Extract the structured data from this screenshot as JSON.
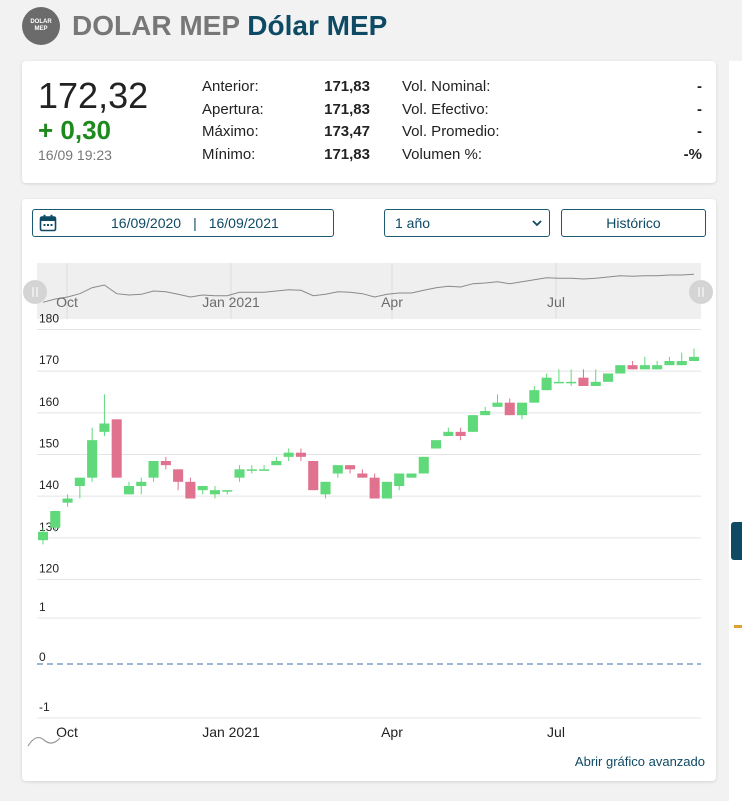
{
  "header": {
    "logo_text": "DOLAR MEP",
    "symbol": "DOLAR MEP",
    "name": "Dólar MEP"
  },
  "quote": {
    "price": "172,32",
    "change": "+ 0,30",
    "datetime": "16/09 19:23",
    "stats_left": [
      {
        "label": "Anterior:",
        "value": "171,83"
      },
      {
        "label": "Apertura:",
        "value": "171,83"
      },
      {
        "label": "Máximo:",
        "value": "173,47"
      },
      {
        "label": "Mínimo:",
        "value": "171,83"
      }
    ],
    "stats_right": [
      {
        "label": "Vol. Nominal:",
        "value": "-"
      },
      {
        "label": "Vol. Efectivo:",
        "value": "-"
      },
      {
        "label": "Vol. Promedio:",
        "value": "-"
      },
      {
        "label": "Volumen %:",
        "value": "-%"
      }
    ]
  },
  "controls": {
    "date_from": "16/09/2020",
    "separator": "|",
    "date_to": "16/09/2021",
    "period": "1 año",
    "historic_button": "Histórico",
    "advanced_link": "Abrir gráfico avanzado"
  },
  "colors": {
    "up": "#5fd97a",
    "down": "#e0728f",
    "brand": "#0e4a64",
    "change_positive": "#1c8a1c",
    "zero_line": "#7e9ec4"
  },
  "chart_data": {
    "type": "candlestick",
    "x_labels": [
      "Oct",
      "Jan 2021",
      "Apr",
      "Jul"
    ],
    "price_axis": {
      "ticks": [
        120,
        130,
        140,
        150,
        160,
        170,
        180
      ],
      "ylim": [
        117,
        183
      ]
    },
    "volume_axis": {
      "ticks": [
        1,
        0,
        -1
      ]
    },
    "grid": true,
    "candles": [
      {
        "o": 128,
        "h": 131,
        "l": 127,
        "c": 130
      },
      {
        "o": 131,
        "h": 135,
        "l": 130,
        "c": 135
      },
      {
        "o": 137,
        "h": 139,
        "l": 136,
        "c": 138
      },
      {
        "o": 141,
        "h": 143,
        "l": 138,
        "c": 143
      },
      {
        "o": 143,
        "h": 155,
        "l": 142,
        "c": 152
      },
      {
        "o": 154,
        "h": 163,
        "l": 153,
        "c": 156
      },
      {
        "o": 157,
        "h": 157,
        "l": 143,
        "c": 143
      },
      {
        "o": 139,
        "h": 142,
        "l": 139,
        "c": 141
      },
      {
        "o": 141,
        "h": 143,
        "l": 139,
        "c": 142
      },
      {
        "o": 143,
        "h": 147,
        "l": 142,
        "c": 147
      },
      {
        "o": 147,
        "h": 148,
        "l": 145,
        "c": 146
      },
      {
        "o": 145,
        "h": 145,
        "l": 140,
        "c": 142
      },
      {
        "o": 142,
        "h": 143,
        "l": 138,
        "c": 138
      },
      {
        "o": 140,
        "h": 141,
        "l": 139,
        "c": 141
      },
      {
        "o": 139,
        "h": 141,
        "l": 138,
        "c": 140
      },
      {
        "o": 140,
        "h": 140,
        "l": 139,
        "c": 140
      },
      {
        "o": 143,
        "h": 146,
        "l": 142,
        "c": 145
      },
      {
        "o": 145,
        "h": 146,
        "l": 144,
        "c": 145
      },
      {
        "o": 145,
        "h": 146,
        "l": 145,
        "c": 145
      },
      {
        "o": 146,
        "h": 148,
        "l": 146,
        "c": 147
      },
      {
        "o": 148,
        "h": 150,
        "l": 147,
        "c": 149
      },
      {
        "o": 149,
        "h": 150,
        "l": 147,
        "c": 148
      },
      {
        "o": 147,
        "h": 147,
        "l": 140,
        "c": 140
      },
      {
        "o": 139,
        "h": 142,
        "l": 138,
        "c": 142
      },
      {
        "o": 144,
        "h": 146,
        "l": 143,
        "c": 146
      },
      {
        "o": 146,
        "h": 146,
        "l": 144,
        "c": 145
      },
      {
        "o": 144,
        "h": 145,
        "l": 143,
        "c": 143
      },
      {
        "o": 143,
        "h": 144,
        "l": 138,
        "c": 138
      },
      {
        "o": 138,
        "h": 142,
        "l": 138,
        "c": 142
      },
      {
        "o": 141,
        "h": 144,
        "l": 140,
        "c": 144
      },
      {
        "o": 143,
        "h": 144,
        "l": 143,
        "c": 144
      },
      {
        "o": 144,
        "h": 148,
        "l": 144,
        "c": 148
      },
      {
        "o": 150,
        "h": 152,
        "l": 150,
        "c": 152
      },
      {
        "o": 153,
        "h": 155,
        "l": 153,
        "c": 154
      },
      {
        "o": 154,
        "h": 155,
        "l": 152,
        "c": 153
      },
      {
        "o": 154,
        "h": 158,
        "l": 154,
        "c": 158
      },
      {
        "o": 158,
        "h": 160,
        "l": 158,
        "c": 159
      },
      {
        "o": 160,
        "h": 163,
        "l": 160,
        "c": 161
      },
      {
        "o": 161,
        "h": 162,
        "l": 158,
        "c": 158
      },
      {
        "o": 158,
        "h": 161,
        "l": 157,
        "c": 161
      },
      {
        "o": 161,
        "h": 165,
        "l": 161,
        "c": 164
      },
      {
        "o": 164,
        "h": 168,
        "l": 164,
        "c": 167
      },
      {
        "o": 166,
        "h": 169,
        "l": 166,
        "c": 166
      },
      {
        "o": 166,
        "h": 169,
        "l": 165,
        "c": 166
      },
      {
        "o": 167,
        "h": 169,
        "l": 165,
        "c": 165
      },
      {
        "o": 165,
        "h": 169,
        "l": 165,
        "c": 166
      },
      {
        "o": 166,
        "h": 168,
        "l": 166,
        "c": 168
      },
      {
        "o": 168,
        "h": 170,
        "l": 168,
        "c": 170
      },
      {
        "o": 170,
        "h": 171,
        "l": 169,
        "c": 169
      },
      {
        "o": 169,
        "h": 172,
        "l": 169,
        "c": 170
      },
      {
        "o": 169,
        "h": 171,
        "l": 169,
        "c": 170
      },
      {
        "o": 170,
        "h": 172,
        "l": 170,
        "c": 171
      },
      {
        "o": 170,
        "h": 173,
        "l": 170,
        "c": 171
      },
      {
        "o": 171,
        "h": 174,
        "l": 171,
        "c": 172
      }
    ]
  }
}
